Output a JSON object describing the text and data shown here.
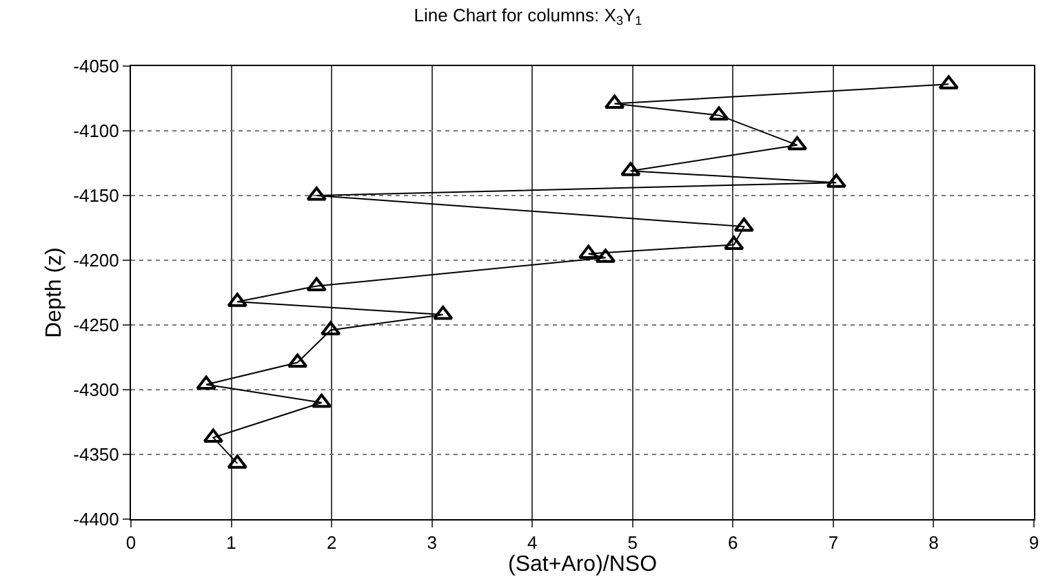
{
  "chart_data": {
    "type": "line",
    "title": "Line Chart for columns: X$_{3}$Y$_{1}$",
    "xlabel": "(Sat+Aro)/NSO",
    "ylabel": "Depth (z)",
    "series": [
      {
        "color": "#000000",
        "x": [
          8.15,
          4.82,
          5.86,
          6.64,
          4.98,
          7.03,
          1.85,
          6.11,
          6.01,
          4.56,
          4.73,
          1.85,
          1.06,
          3.11,
          1.99,
          1.66,
          0.75,
          1.9,
          0.82,
          1.06
        ],
        "values": [
          -4064,
          -4079,
          -4088,
          -4111,
          -4131,
          -4140,
          -4150,
          -4174,
          -4188,
          -4195,
          -4198,
          -4220,
          -4232,
          -4242,
          -4254,
          -4279,
          -4296,
          -4310,
          -4337,
          -4357
        ]
      }
    ],
    "xlim": [
      0,
      9
    ],
    "xticks": [
      0,
      1,
      2,
      3,
      4,
      5,
      6,
      7,
      8,
      9
    ],
    "ylim": [
      -4400,
      -4050
    ],
    "yticks": [
      -4400,
      -4350,
      -4300,
      -4250,
      -4200,
      -4150,
      -4100,
      -4050
    ],
    "grid": true,
    "marker": "triangle",
    "line_style": "solid"
  }
}
